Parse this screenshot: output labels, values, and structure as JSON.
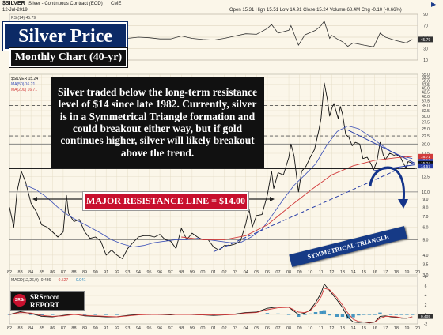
{
  "header": {
    "ticker": "$SILVER",
    "description": "Silver - Continuous Contract (EOD)",
    "exchange": "CME",
    "date": "12-Jul-2019",
    "quote": "Open 15.31  High 15.51  Low 14.91  Close 15.24  Volume 68.4M  Chg -0.10 (-0.66%)",
    "top_right_icon": "play-triangle-icon"
  },
  "titles": {
    "main": "Silver Price",
    "subtitle": "Monthly Chart (40-yr)"
  },
  "annotations": {
    "note": "Silver traded below the long-term resistance level of $14 since late 1982.  Currently, silver is in a Symmetrical Triangle formation and could breakout either way, but if gold continues higher, silver will likely breakout above the trend.",
    "resistance": "MAJOR RESISTANCE LINE = $14.00",
    "triangle": "SYMMETRICAL TRIANGLE"
  },
  "logo": {
    "badge": "SRSr",
    "line1": "SRSrocco",
    "line2": "REPORT"
  },
  "colors": {
    "background": "#fbf6e9",
    "price": "#111111",
    "ma50": "#3a4fb8",
    "ma200": "#d13b3b",
    "resistance_line": "#222222",
    "trend_line": "#2a3fa8",
    "macd_line": "#111111",
    "signal_line": "#d13b3b",
    "histogram": "#1b7fb8",
    "rsi_line": "#333333"
  },
  "chart_data": [
    {
      "type": "line",
      "panel": "rsi",
      "label": "RSI(14)",
      "value_label": "45.79",
      "ylim": [
        10,
        90
      ],
      "yticks": [
        10,
        30,
        50,
        70,
        90
      ],
      "ytick_labels": [
        "10",
        "30",
        "50",
        "70",
        "90"
      ],
      "grid": true,
      "x": [
        1982.0,
        1983.0,
        1984.0,
        1985.0,
        1986.0,
        1987.0,
        1987.3,
        1988.0,
        1989.0,
        1990.0,
        1991.0,
        1992.0,
        1993.0,
        1994.0,
        1995.0,
        1996.0,
        1997.0,
        1998.0,
        1999.0,
        2000.0,
        2001.0,
        2002.0,
        2003.0,
        2004.0,
        2005.0,
        2006.0,
        2006.4,
        2007.0,
        2008.0,
        2008.2,
        2008.9,
        2009.5,
        2010.0,
        2010.5,
        2011.0,
        2011.3,
        2011.8,
        2012.0,
        2012.5,
        2013.0,
        2013.5,
        2014.0,
        2015.0,
        2015.9,
        2016.5,
        2017.0,
        2018.0,
        2018.9,
        2019.5
      ],
      "values": [
        45,
        58,
        44,
        40,
        41,
        46,
        62,
        46,
        42,
        40,
        39,
        41,
        48,
        50,
        49,
        47,
        47,
        52,
        48,
        46,
        45,
        48,
        52,
        56,
        55,
        65,
        72,
        57,
        62,
        70,
        36,
        54,
        58,
        62,
        70,
        78,
        48,
        53,
        47,
        42,
        34,
        40,
        36,
        33,
        57,
        50,
        44,
        40,
        46
      ]
    },
    {
      "type": "line",
      "panel": "price",
      "ylabel": "",
      "xlabel": "",
      "ylim": [
        3,
        55
      ],
      "yticks": [
        3,
        3.5,
        4,
        5,
        6,
        7,
        8,
        9,
        10,
        12.5,
        15,
        17.5,
        20,
        22.5,
        25,
        27.5,
        30,
        32.5,
        35,
        37.5,
        40,
        42.5,
        45,
        47.5,
        50,
        52.5,
        55
      ],
      "ytick_labels": [
        "3.0",
        "3.5",
        "4.0",
        "5.0",
        "6.0",
        "7.0",
        "8.0",
        "9.0",
        "10.0",
        "12.5",
        "15.0",
        "17.5",
        "20.0",
        "22.5",
        "25.0",
        "27.5",
        "30.0",
        "32.5",
        "35.0",
        "37.5",
        "40.0",
        "42.5",
        "45.0",
        "47.5",
        "50.0",
        "52.5",
        "55.0"
      ],
      "xticks": [
        "82",
        "83",
        "84",
        "85",
        "86",
        "87",
        "88",
        "89",
        "90",
        "91",
        "92",
        "93",
        "94",
        "95",
        "96",
        "97",
        "98",
        "99",
        "00",
        "01",
        "02",
        "03",
        "04",
        "05",
        "06",
        "07",
        "08",
        "09",
        "10",
        "11",
        "12",
        "13",
        "14",
        "15",
        "16",
        "17",
        "18",
        "19",
        "20"
      ],
      "xlim": [
        1982.0,
        2020.0
      ],
      "grid": true,
      "hlines": [
        5.0,
        10.0,
        20.0
      ],
      "dashed_hlines": [
        14.0,
        22.5,
        35.0
      ],
      "price_labels": [
        "15.24",
        "14.57",
        "16.21",
        "16.71"
      ],
      "legend": [
        {
          "name": "$SILVER",
          "value": "15.24"
        },
        {
          "name": "MA(50)",
          "value": "16.21"
        },
        {
          "name": "MA(200)",
          "value": "16.71"
        }
      ],
      "series": [
        {
          "name": "$SILVER",
          "x": [
            1982.0,
            1982.4,
            1982.7,
            1983.1,
            1983.5,
            1984.0,
            1984.5,
            1985.0,
            1985.5,
            1986.0,
            1986.5,
            1987.0,
            1987.3,
            1987.5,
            1988.0,
            1988.5,
            1989.0,
            1989.5,
            1990.0,
            1990.5,
            1991.0,
            1991.5,
            1992.0,
            1992.5,
            1993.0,
            1993.5,
            1994.0,
            1994.5,
            1995.0,
            1995.5,
            1996.0,
            1996.5,
            1997.0,
            1997.5,
            1998.0,
            1998.5,
            1999.0,
            1999.5,
            2000.0,
            2000.5,
            2001.0,
            2001.5,
            2002.0,
            2002.5,
            2003.0,
            2003.5,
            2004.0,
            2004.3,
            2004.6,
            2005.0,
            2005.5,
            2006.0,
            2006.4,
            2006.6,
            2007.0,
            2007.5,
            2008.0,
            2008.2,
            2008.5,
            2008.9,
            2009.2,
            2009.6,
            2010.0,
            2010.4,
            2010.8,
            2011.0,
            2011.3,
            2011.6,
            2011.8,
            2012.0,
            2012.2,
            2012.6,
            2012.8,
            2013.0,
            2013.3,
            2013.6,
            2013.9,
            2014.2,
            2014.6,
            2014.9,
            2015.3,
            2015.6,
            2015.9,
            2016.2,
            2016.5,
            2016.8,
            2017.0,
            2017.4,
            2017.8,
            2018.0,
            2018.4,
            2018.7,
            2018.9,
            2019.1,
            2019.5
          ],
          "values": [
            8.0,
            6.0,
            10.0,
            13.5,
            11.5,
            8.5,
            7.5,
            6.2,
            6.0,
            5.6,
            5.2,
            5.6,
            9.5,
            7.3,
            6.5,
            6.7,
            5.6,
            5.1,
            5.2,
            4.9,
            4.0,
            4.3,
            4.0,
            3.8,
            4.4,
            4.8,
            5.2,
            5.3,
            5.3,
            5.2,
            5.4,
            5.0,
            4.9,
            4.4,
            5.9,
            5.0,
            5.5,
            5.2,
            5.0,
            5.0,
            4.5,
            4.3,
            4.6,
            4.6,
            4.7,
            4.9,
            6.3,
            7.8,
            6.0,
            7.1,
            7.2,
            9.5,
            13.5,
            10.5,
            13.2,
            12.8,
            16.5,
            20.0,
            16.8,
            10.0,
            13.5,
            14.5,
            16.5,
            18.5,
            24.5,
            29.0,
            48.5,
            38.0,
            30.0,
            33.5,
            36.0,
            29.0,
            34.5,
            31.0,
            23.0,
            22.0,
            19.5,
            20.5,
            20.0,
            16.2,
            16.5,
            15.2,
            13.8,
            15.5,
            20.5,
            17.0,
            16.0,
            17.5,
            17.0,
            17.2,
            16.5,
            15.0,
            14.2,
            15.5,
            15.2
          ]
        },
        {
          "name": "MA(50)",
          "x": [
            1983.5,
            1984.5,
            1985.5,
            1986.5,
            1987.5,
            1988.5,
            1989.5,
            1990.5,
            1991.5,
            1992.5,
            1993.5,
            1994.5,
            1995.5,
            1996.5,
            1997.5,
            1998.5,
            1999.5,
            2000.5,
            2001.5,
            2002.5,
            2003.5,
            2004.5,
            2005.5,
            2006.5,
            2007.5,
            2008.5,
            2009.5,
            2010.5,
            2011.5,
            2012.5,
            2013.5,
            2014.5,
            2015.5,
            2016.5,
            2017.5,
            2018.5,
            2019.5
          ],
          "values": [
            11.0,
            10.3,
            9.2,
            8.0,
            7.1,
            6.5,
            6.0,
            5.5,
            5.0,
            4.7,
            4.5,
            4.6,
            4.8,
            4.9,
            5.0,
            5.0,
            5.1,
            5.0,
            4.9,
            4.8,
            4.8,
            5.2,
            5.8,
            7.2,
            9.0,
            11.0,
            12.8,
            15.0,
            19.5,
            24.0,
            26.0,
            25.0,
            22.5,
            20.0,
            18.0,
            16.8,
            16.2
          ]
        },
        {
          "name": "MA(200)",
          "x": [
            1998.0,
            2000.0,
            2002.0,
            2004.0,
            2006.0,
            2008.0,
            2010.0,
            2012.0,
            2014.0,
            2016.0,
            2018.0,
            2019.5
          ],
          "values": [
            5.2,
            5.0,
            5.0,
            5.3,
            6.2,
            8.0,
            10.2,
            12.8,
            14.6,
            15.8,
            16.4,
            16.7
          ]
        }
      ],
      "lines": [
        {
          "name": "resistance",
          "x": [
            1982.0,
            2019.7
          ],
          "values": [
            14.0,
            14.0
          ]
        },
        {
          "name": "long-term-trend",
          "x": [
            2001.0,
            2019.7
          ],
          "values": [
            4.2,
            15.4
          ]
        },
        {
          "name": "triangle-upper",
          "x": [
            2013.5,
            2019.7
          ],
          "values": [
            24.5,
            15.2
          ]
        },
        {
          "name": "triangle-lower",
          "x": [
            2015.9,
            2019.7
          ],
          "values": [
            13.6,
            14.8
          ]
        }
      ]
    },
    {
      "type": "line",
      "panel": "macd",
      "legend": [
        {
          "name": "MACD(12,26,9)",
          "value": "-0.486"
        },
        {
          "name": "",
          "value": "-0.527"
        },
        {
          "name": "",
          "value": "0.041"
        }
      ],
      "ylim": [
        -2,
        8
      ],
      "yticks": [
        -2,
        0,
        2,
        4,
        6,
        8
      ],
      "ytick_labels": [
        "-2",
        "0",
        "2",
        "4",
        "6",
        "8"
      ],
      "value_label": "0.405",
      "grid": true,
      "x": [
        1982.0,
        1983.0,
        1984.0,
        1985.0,
        1986.0,
        1987.0,
        1988.0,
        1989.0,
        1990.0,
        1991.0,
        1992.0,
        1993.0,
        1994.0,
        1995.0,
        1996.0,
        1997.0,
        1998.0,
        1999.0,
        2000.0,
        2001.0,
        2002.0,
        2003.0,
        2004.0,
        2005.0,
        2006.0,
        2007.0,
        2008.0,
        2008.9,
        2009.5,
        2010.0,
        2010.5,
        2011.0,
        2011.3,
        2011.8,
        2012.5,
        2013.0,
        2013.5,
        2014.0,
        2014.5,
        2015.0,
        2015.5,
        2016.0,
        2016.5,
        2017.0,
        2017.5,
        2018.0,
        2018.5,
        2019.0,
        2019.5
      ],
      "series": [
        {
          "name": "MACD",
          "values": [
            0.0,
            0.6,
            0.2,
            -0.4,
            -0.5,
            -0.2,
            0.1,
            -0.3,
            -0.4,
            -0.5,
            -0.5,
            -0.2,
            0.0,
            0.0,
            0.0,
            -0.1,
            0.1,
            0.0,
            -0.1,
            -0.2,
            -0.1,
            0.1,
            0.4,
            0.5,
            1.3,
            1.6,
            1.5,
            0.0,
            0.3,
            1.0,
            2.5,
            4.5,
            6.4,
            5.0,
            3.0,
            1.5,
            -0.6,
            -1.6,
            -1.7,
            -1.6,
            -1.8,
            -1.6,
            -0.4,
            -0.3,
            -0.5,
            -0.6,
            -0.8,
            -0.8,
            -0.5
          ]
        },
        {
          "name": "Signal",
          "values": [
            0.0,
            0.4,
            0.3,
            -0.2,
            -0.4,
            -0.3,
            0.0,
            -0.2,
            -0.3,
            -0.4,
            -0.5,
            -0.3,
            -0.1,
            0.0,
            0.0,
            0.0,
            0.0,
            0.0,
            -0.1,
            -0.1,
            -0.1,
            0.0,
            0.3,
            0.4,
            1.0,
            1.4,
            1.5,
            0.5,
            0.4,
            0.8,
            2.0,
            3.7,
            5.5,
            5.2,
            3.5,
            2.0,
            0.3,
            -1.0,
            -1.5,
            -1.6,
            -1.7,
            -1.6,
            -0.8,
            -0.4,
            -0.4,
            -0.5,
            -0.7,
            -0.8,
            -0.5
          ]
        }
      ]
    }
  ]
}
